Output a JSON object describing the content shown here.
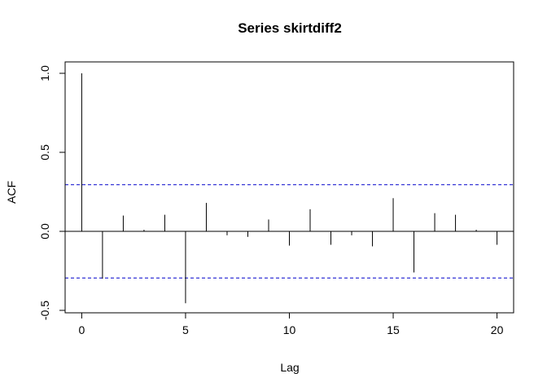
{
  "chart_data": {
    "type": "bar",
    "title": "Series  skirtdiff2",
    "xlabel": "Lag",
    "ylabel": "ACF",
    "x": [
      0,
      1,
      2,
      3,
      4,
      5,
      6,
      7,
      8,
      9,
      10,
      11,
      12,
      13,
      14,
      15,
      16,
      17,
      18,
      19,
      20
    ],
    "values": [
      1.0,
      -0.3,
      0.1,
      0.01,
      0.105,
      -0.455,
      0.18,
      -0.025,
      -0.035,
      0.075,
      -0.09,
      0.14,
      -0.085,
      -0.025,
      -0.095,
      0.21,
      -0.26,
      0.115,
      0.105,
      0.01,
      -0.085
    ],
    "xlim": [
      -0.8,
      20.8
    ],
    "ylim": [
      -0.5,
      1.0
    ],
    "xticks": [
      0,
      5,
      10,
      15,
      20
    ],
    "yticks": [
      -0.5,
      0.0,
      0.5,
      1.0
    ],
    "xtick_labels": [
      "0",
      "5",
      "10",
      "15",
      "20"
    ],
    "ytick_labels": [
      "-0.5",
      "0.0",
      "0.5",
      "1.0"
    ],
    "confidence_bounds": [
      0.295,
      -0.295
    ],
    "colors": {
      "bars": "#000000",
      "confidence": "#0000cc",
      "zero_line": "#000000"
    },
    "grid": false
  }
}
